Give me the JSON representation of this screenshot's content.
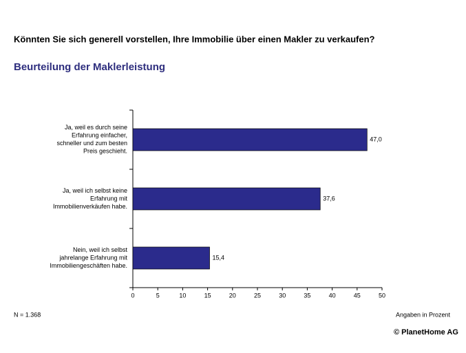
{
  "chart_data": {
    "type": "bar",
    "orientation": "horizontal",
    "title": "Könnten Sie sich generell vorstellen, Ihre Immobilie über einen Makler zu verkaufen?",
    "subtitle": "Beurteilung der Maklerleistung",
    "categories": [
      [
        "Ja, weil es durch seine",
        "Erfahrung einfacher,",
        "schneller und zum besten",
        "Preis geschieht."
      ],
      [
        "Ja, weil ich selbst keine",
        "Erfahrung mit",
        "Immobilienverkäufen habe."
      ],
      [
        "Nein, weil ich selbst",
        "jahrelange Erfahrung mit",
        "Immobiliengeschäften habe."
      ]
    ],
    "values": [
      47.0,
      37.6,
      15.4
    ],
    "value_labels": [
      "47,0",
      "37,6",
      "15,4"
    ],
    "color": "#2b2b8c",
    "xlim": [
      0,
      50
    ],
    "xticks": [
      0,
      5,
      10,
      15,
      20,
      25,
      30,
      35,
      40,
      45,
      50
    ],
    "footnote_left": "N = 1.368",
    "footnote_right": "Angaben in Prozent",
    "source": "© PlanetHome AG"
  }
}
